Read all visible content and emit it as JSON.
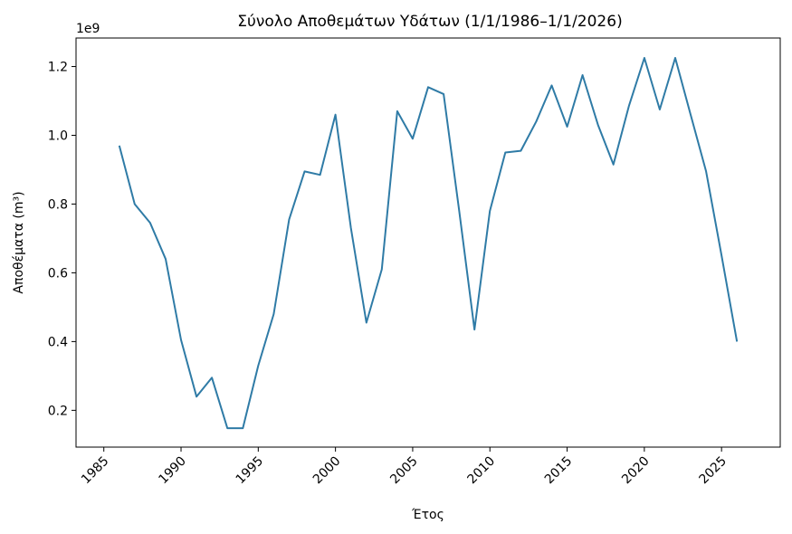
{
  "chart_data": {
    "type": "line",
    "title": "Σύνολο Αποθεμάτων Υδάτων (1/1/1986–1/1/2026)",
    "xlabel": "Έτος",
    "ylabel": "Αποθέματα (m³)",
    "y_offset_label": "1e9",
    "xlim": [
      1983.2,
      1028.8
    ],
    "ylim": [
      0.093,
      1.283
    ],
    "x_ticks": [
      1985,
      1990,
      1995,
      2000,
      2005,
      2010,
      2015,
      2020,
      2025
    ],
    "y_ticks": [
      0.2,
      0.4,
      0.6,
      0.8,
      1.0,
      1.2
    ],
    "y_tick_labels": [
      "0.2",
      "0.4",
      "0.6",
      "0.8",
      "1.0",
      "1.2"
    ],
    "grid": false,
    "line_color": "#2f7ba6",
    "series": [
      {
        "name": "",
        "x": [
          1986,
          1987,
          1988,
          1989,
          1990,
          1991,
          1992,
          1993,
          1994,
          1995,
          1996,
          1997,
          1998,
          1999,
          2000,
          2001,
          2002,
          2003,
          2004,
          2005,
          2006,
          2007,
          2008,
          2009,
          2010,
          2011,
          2012,
          2013,
          2014,
          2015,
          2016,
          2017,
          2018,
          2019,
          2020,
          2021,
          2022,
          2023,
          2024,
          2025,
          2026
        ],
        "y": [
          0.97,
          0.8,
          0.745,
          0.64,
          0.405,
          0.24,
          0.295,
          0.148,
          0.148,
          0.33,
          0.48,
          0.755,
          0.895,
          0.885,
          1.06,
          0.73,
          0.455,
          0.61,
          1.07,
          0.99,
          1.14,
          1.12,
          0.785,
          0.435,
          0.78,
          0.95,
          0.955,
          1.04,
          1.145,
          1.025,
          1.175,
          1.03,
          0.915,
          1.085,
          1.225,
          1.075,
          1.225,
          1.06,
          0.895,
          0.65,
          0.4
        ]
      }
    ]
  }
}
